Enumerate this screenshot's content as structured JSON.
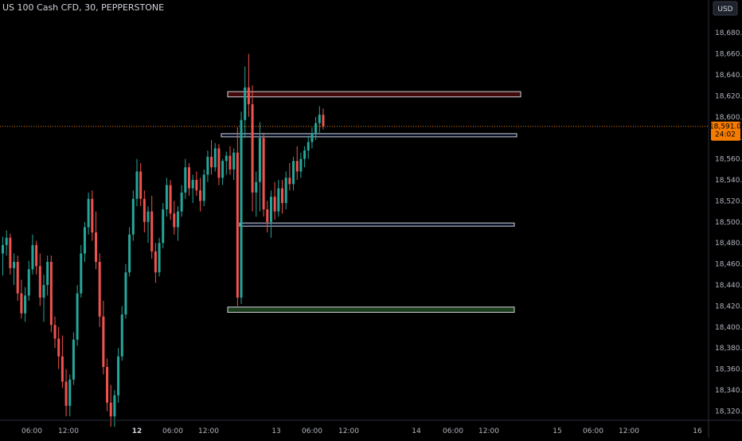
{
  "header": {
    "title": "US 100 Cash CFD, 30, PEPPERSTONE",
    "currency": "USD"
  },
  "chart_data": {
    "type": "candlestick",
    "symbol": "US 100 Cash CFD",
    "interval": "30",
    "source": "PEPPERSTONE",
    "currency": "USD",
    "y_range": [
      18312,
      18690
    ],
    "y_ticks": [
      "18,680.0",
      "18,660.0",
      "18,640.0",
      "18,620.0",
      "18,600.0",
      "18,580.0",
      "18,560.0",
      "18,540.0",
      "18,520.0",
      "18,500.0",
      "18,480.0",
      "18,460.0",
      "18,440.0",
      "18,420.0",
      "18,400.0",
      "18,380.0",
      "18,360.0",
      "18,340.0",
      "18,320.0"
    ],
    "x_ticks": [
      "06:00",
      "12:00",
      "12",
      "06:00",
      "12:00",
      "13",
      "06:00",
      "12:00",
      "14",
      "06:00",
      "12:00",
      "15",
      "06:00",
      "12:00",
      "16"
    ],
    "x_ticks_bold": [
      "12"
    ],
    "current_price": 18591.0,
    "current_price_label": "18,591.0",
    "countdown": "24:02",
    "zones": [
      {
        "name": "supply-zone-top",
        "type": "supply",
        "top": 18624,
        "bottom": 18619,
        "color": "#b71c1c"
      },
      {
        "name": "level-upper",
        "type": "level",
        "top": 18584,
        "bottom": 18581,
        "color": "#2962ff"
      },
      {
        "name": "level-middle",
        "type": "level",
        "top": 18499,
        "bottom": 18496,
        "color": "#2962ff"
      },
      {
        "name": "demand-zone-bottom",
        "type": "demand",
        "top": 18419,
        "bottom": 18414,
        "color": "#4caf50"
      }
    ],
    "colors": {
      "up": "#26a69a",
      "down": "#ef5350",
      "price_line": "#f57c00",
      "background": "#000000"
    },
    "candles": [
      [
        18470,
        18486,
        18449,
        18478
      ],
      [
        18478,
        18492,
        18468,
        18485
      ],
      [
        18485,
        18489,
        18450,
        18456
      ],
      [
        18456,
        18470,
        18440,
        18462
      ],
      [
        18462,
        18468,
        18425,
        18432
      ],
      [
        18432,
        18445,
        18408,
        18413
      ],
      [
        18413,
        18438,
        18405,
        18430
      ],
      [
        18430,
        18463,
        18425,
        18455
      ],
      [
        18455,
        18488,
        18450,
        18478
      ],
      [
        18478,
        18482,
        18450,
        18458
      ],
      [
        18458,
        18470,
        18420,
        18428
      ],
      [
        18428,
        18450,
        18405,
        18440
      ],
      [
        18440,
        18468,
        18430,
        18462
      ],
      [
        18462,
        18468,
        18395,
        18402
      ],
      [
        18402,
        18410,
        18380,
        18389
      ],
      [
        18389,
        18400,
        18360,
        18372
      ],
      [
        18372,
        18392,
        18342,
        18348
      ],
      [
        18348,
        18360,
        18315,
        18325
      ],
      [
        18325,
        18355,
        18315,
        18350
      ],
      [
        18350,
        18395,
        18345,
        18388
      ],
      [
        18388,
        18440,
        18382,
        18432
      ],
      [
        18432,
        18478,
        18428,
        18470
      ],
      [
        18470,
        18500,
        18462,
        18495
      ],
      [
        18495,
        18528,
        18488,
        18522
      ],
      [
        18522,
        18530,
        18482,
        18490
      ],
      [
        18490,
        18510,
        18455,
        18462
      ],
      [
        18462,
        18470,
        18400,
        18410
      ],
      [
        18410,
        18425,
        18355,
        18362
      ],
      [
        18362,
        18370,
        18320,
        18328
      ],
      [
        18328,
        18345,
        18305,
        18315
      ],
      [
        18315,
        18340,
        18305,
        18335
      ],
      [
        18335,
        18380,
        18328,
        18372
      ],
      [
        18372,
        18420,
        18368,
        18412
      ],
      [
        18412,
        18460,
        18408,
        18452
      ],
      [
        18452,
        18495,
        18448,
        18488
      ],
      [
        18488,
        18530,
        18482,
        18522
      ],
      [
        18522,
        18560,
        18515,
        18548
      ],
      [
        18548,
        18556,
        18515,
        18522
      ],
      [
        18522,
        18530,
        18490,
        18500
      ],
      [
        18500,
        18515,
        18480,
        18510
      ],
      [
        18510,
        18525,
        18465,
        18472
      ],
      [
        18472,
        18480,
        18442,
        18452
      ],
      [
        18452,
        18485,
        18448,
        18480
      ],
      [
        18480,
        18518,
        18475,
        18512
      ],
      [
        18512,
        18542,
        18505,
        18535
      ],
      [
        18535,
        18540,
        18502,
        18508
      ],
      [
        18508,
        18520,
        18488,
        18495
      ],
      [
        18495,
        18515,
        18482,
        18510
      ],
      [
        18510,
        18535,
        18505,
        18528
      ],
      [
        18528,
        18560,
        18522,
        18552
      ],
      [
        18552,
        18556,
        18525,
        18532
      ],
      [
        18532,
        18545,
        18518,
        18540
      ],
      [
        18540,
        18548,
        18525,
        18530
      ],
      [
        18530,
        18542,
        18510,
        18520
      ],
      [
        18520,
        18550,
        18515,
        18545
      ],
      [
        18545,
        18568,
        18538,
        18562
      ],
      [
        18562,
        18578,
        18545,
        18552
      ],
      [
        18552,
        18575,
        18548,
        18570
      ],
      [
        18570,
        18574,
        18535,
        18542
      ],
      [
        18542,
        18560,
        18535,
        18558
      ],
      [
        18558,
        18567,
        18545,
        18563
      ],
      [
        18563,
        18572,
        18545,
        18550
      ],
      [
        18550,
        18570,
        18540,
        18566
      ],
      [
        18566,
        18590,
        18420,
        18428
      ],
      [
        18428,
        18605,
        18422,
        18597
      ],
      [
        18597,
        18648,
        18580,
        18628
      ],
      [
        18628,
        18660,
        18600,
        18612
      ],
      [
        18612,
        18630,
        18510,
        18528
      ],
      [
        18528,
        18548,
        18505,
        18538
      ],
      [
        18538,
        18595,
        18510,
        18580
      ],
      [
        18580,
        18585,
        18505,
        18512
      ],
      [
        18512,
        18520,
        18490,
        18500
      ],
      [
        18500,
        18530,
        18485,
        18524
      ],
      [
        18524,
        18538,
        18502,
        18510
      ],
      [
        18510,
        18540,
        18505,
        18532
      ],
      [
        18532,
        18540,
        18508,
        18518
      ],
      [
        18518,
        18548,
        18512,
        18542
      ],
      [
        18542,
        18556,
        18530,
        18536
      ],
      [
        18536,
        18562,
        18530,
        18558
      ],
      [
        18558,
        18572,
        18540,
        18548
      ],
      [
        18548,
        18566,
        18542,
        18560
      ],
      [
        18560,
        18572,
        18552,
        18568
      ],
      [
        18568,
        18582,
        18560,
        18576
      ],
      [
        18576,
        18590,
        18570,
        18584
      ],
      [
        18584,
        18600,
        18578,
        18594
      ],
      [
        18594,
        18610,
        18585,
        18602
      ],
      [
        18602,
        18608,
        18588,
        18591
      ]
    ]
  }
}
